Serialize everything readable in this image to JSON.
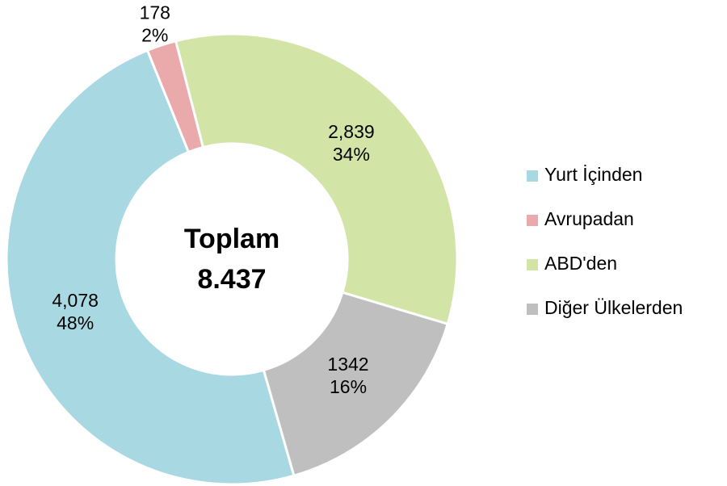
{
  "chart_data": {
    "type": "donut",
    "center_label": "Toplam",
    "center_value": "8.437",
    "categories": [
      "Yurt İçinden",
      "Avrupadan",
      "ABD'den",
      "Diğer Ülkelerden"
    ],
    "values": [
      4078,
      178,
      2839,
      1342
    ],
    "value_labels": [
      "4,078",
      "178",
      "2,839",
      "1342"
    ],
    "percents": [
      48,
      2,
      34,
      16
    ],
    "percent_labels": [
      "48%",
      "2%",
      "34%",
      "16%"
    ],
    "colors": [
      "#a8d8e2",
      "#eaa9ab",
      "#d2e4a6",
      "#bfbfbf"
    ],
    "legend": "right"
  }
}
